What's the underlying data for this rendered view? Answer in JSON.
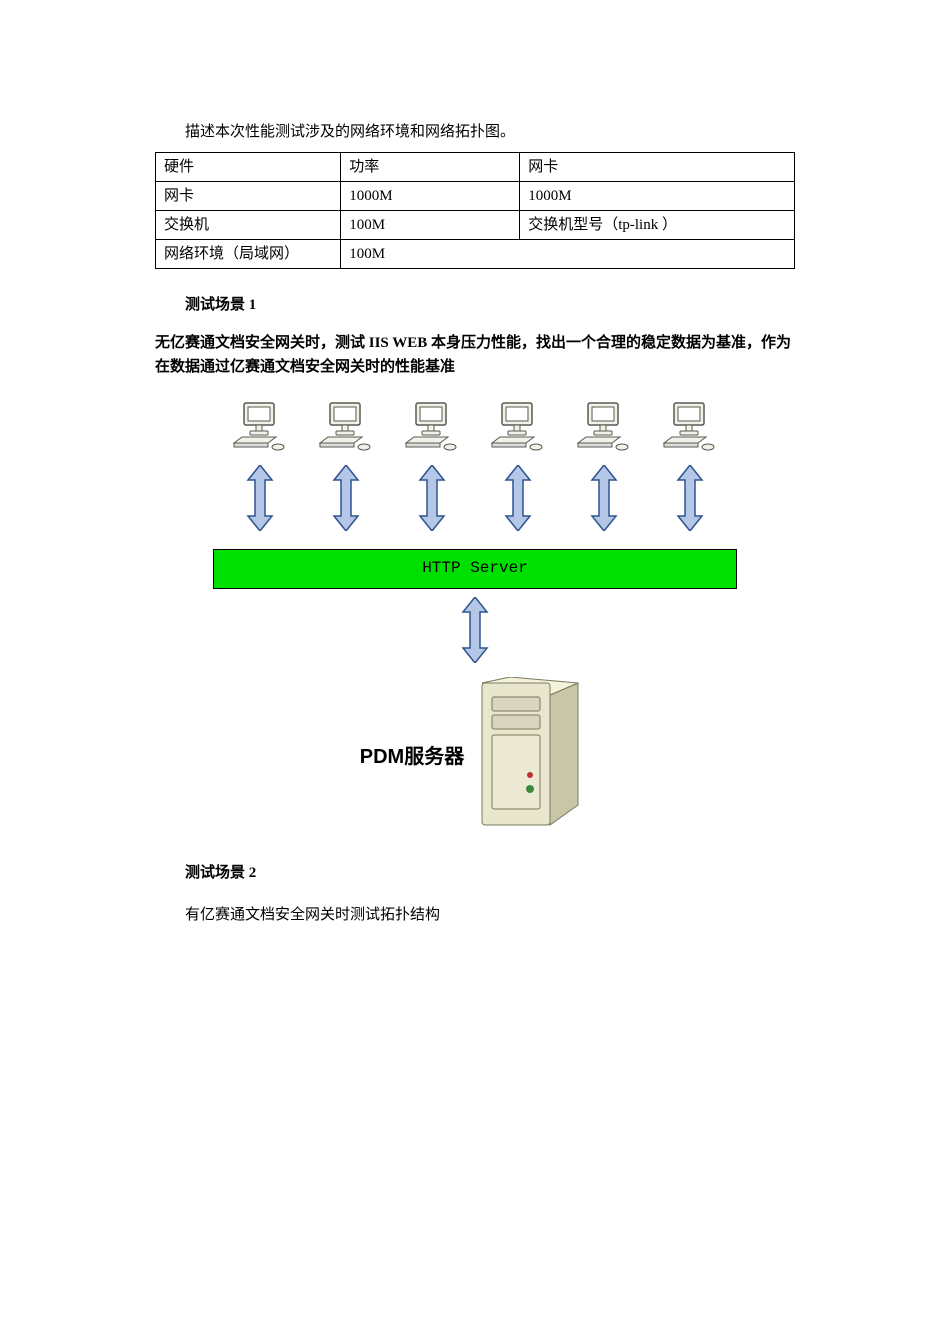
{
  "intro": "描述本次性能测试涉及的网络环境和网络拓扑图。",
  "table": {
    "rows": [
      [
        "硬件",
        "功率",
        "网卡"
      ],
      [
        "网卡",
        "1000M",
        "1000M"
      ],
      [
        "交换机",
        "100M",
        "交换机型号（tp-link ）"
      ],
      [
        "网络环境（局域网）",
        "100M",
        ""
      ]
    ],
    "merge_last_row_cols23": true,
    "border_color": "#000000",
    "font_size": 15
  },
  "scene1": {
    "title": "测试场景 1",
    "description": "无亿赛通文档安全网关时，测试 IIS WEB 本身压力性能，找出一个合理的稳定数据为基准，作为在数据通过亿赛通文档安全网关时的性能基准"
  },
  "diagram": {
    "num_clients": 6,
    "http_label": "HTTP Server",
    "server_label": "PDM服务器",
    "colors": {
      "http_bar_bg": "#00e000",
      "http_bar_border": "#000000",
      "arrow_fill": "#b4c7e7",
      "arrow_stroke": "#2f528f",
      "monitor_fill": "#f2f2ea",
      "monitor_stroke": "#5a5a50",
      "server_body": "#e8e6cd",
      "server_side": "#c9c6a8",
      "server_top": "#f4f2dc",
      "server_stroke": "#7a785e",
      "server_accent_green": "#3a8a3a",
      "server_accent_red": "#b33"
    },
    "arrow_width": 28,
    "arrow_height": 66
  },
  "scene2": {
    "title": "测试场景 2",
    "description": "有亿赛通文档安全网关时测试拓扑结构"
  }
}
